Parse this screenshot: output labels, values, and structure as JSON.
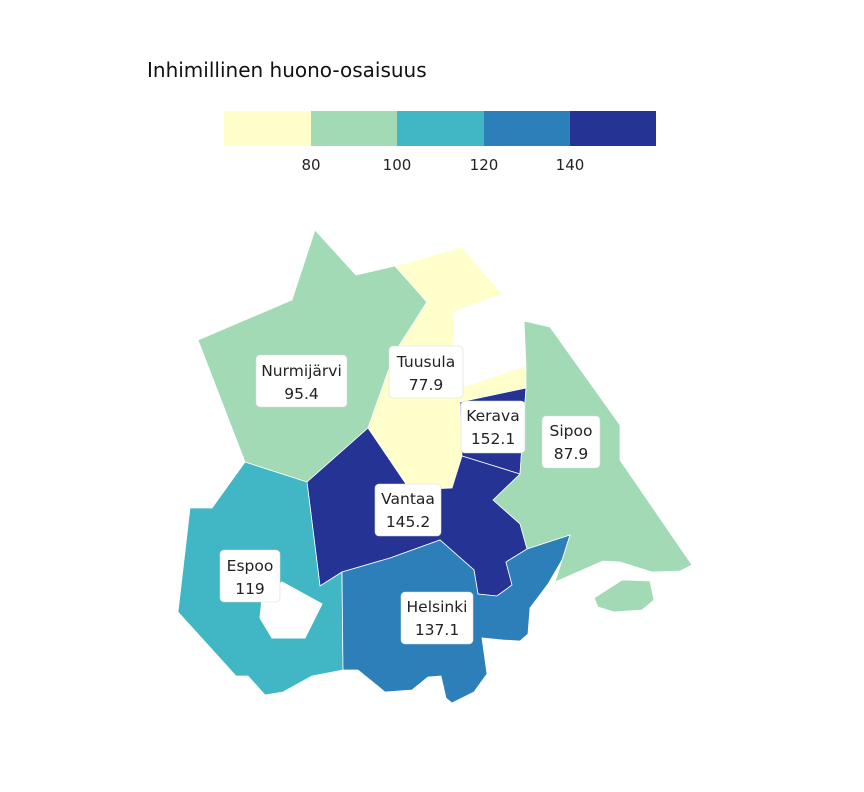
{
  "title": "Inhimillinen huono-osaisuus",
  "legend": {
    "ticks": [
      "80",
      "100",
      "120",
      "140"
    ],
    "colors": [
      "#ffffcc",
      "#a1dab4",
      "#41b6c4",
      "#2c7fb8",
      "#253494"
    ]
  },
  "regions": [
    {
      "name": "Nurmijärvi",
      "value": "95.4",
      "color": "#a1dab4"
    },
    {
      "name": "Tuusula",
      "value": "77.9",
      "color": "#ffffcc"
    },
    {
      "name": "Kerava",
      "value": "152.1",
      "color": "#253494"
    },
    {
      "name": "Sipoo",
      "value": "87.9",
      "color": "#a1dab4"
    },
    {
      "name": "Vantaa",
      "value": "145.2",
      "color": "#253494"
    },
    {
      "name": "Espoo",
      "value": "119",
      "color": "#41b6c4"
    },
    {
      "name": "Helsinki",
      "value": "137.1",
      "color": "#2c7fb8"
    }
  ]
}
